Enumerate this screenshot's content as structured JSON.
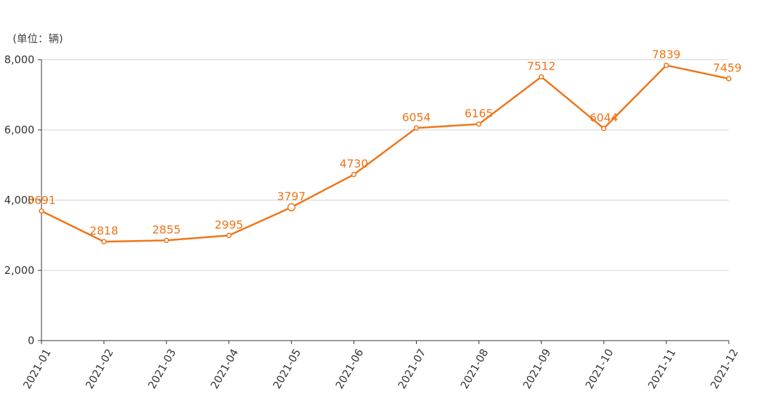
{
  "unit_label": "(单位：辆)",
  "colors": {
    "series": "#f07317",
    "grid": "#d0d0d0",
    "axis": "#333333",
    "text": "#333333"
  },
  "chart_data": {
    "type": "line",
    "title": "",
    "xlabel": "",
    "ylabel": "",
    "ylim": [
      0,
      8000
    ],
    "yticks": [
      0,
      2000,
      4000,
      6000,
      8000
    ],
    "ytick_labels": [
      "0",
      "2,000",
      "4,000",
      "6,000",
      "8,000"
    ],
    "grid": true,
    "categories": [
      "2021-01",
      "2021-02",
      "2021-03",
      "2021-04",
      "2021-05",
      "2021-06",
      "2021-07",
      "2021-08",
      "2021-09",
      "2021-10",
      "2021-11",
      "2021-12"
    ],
    "series": [
      {
        "values": [
          3691,
          2818,
          2855,
          2995,
          3797,
          4730,
          6054,
          6165,
          7512,
          6044,
          7839,
          7459
        ]
      }
    ]
  }
}
